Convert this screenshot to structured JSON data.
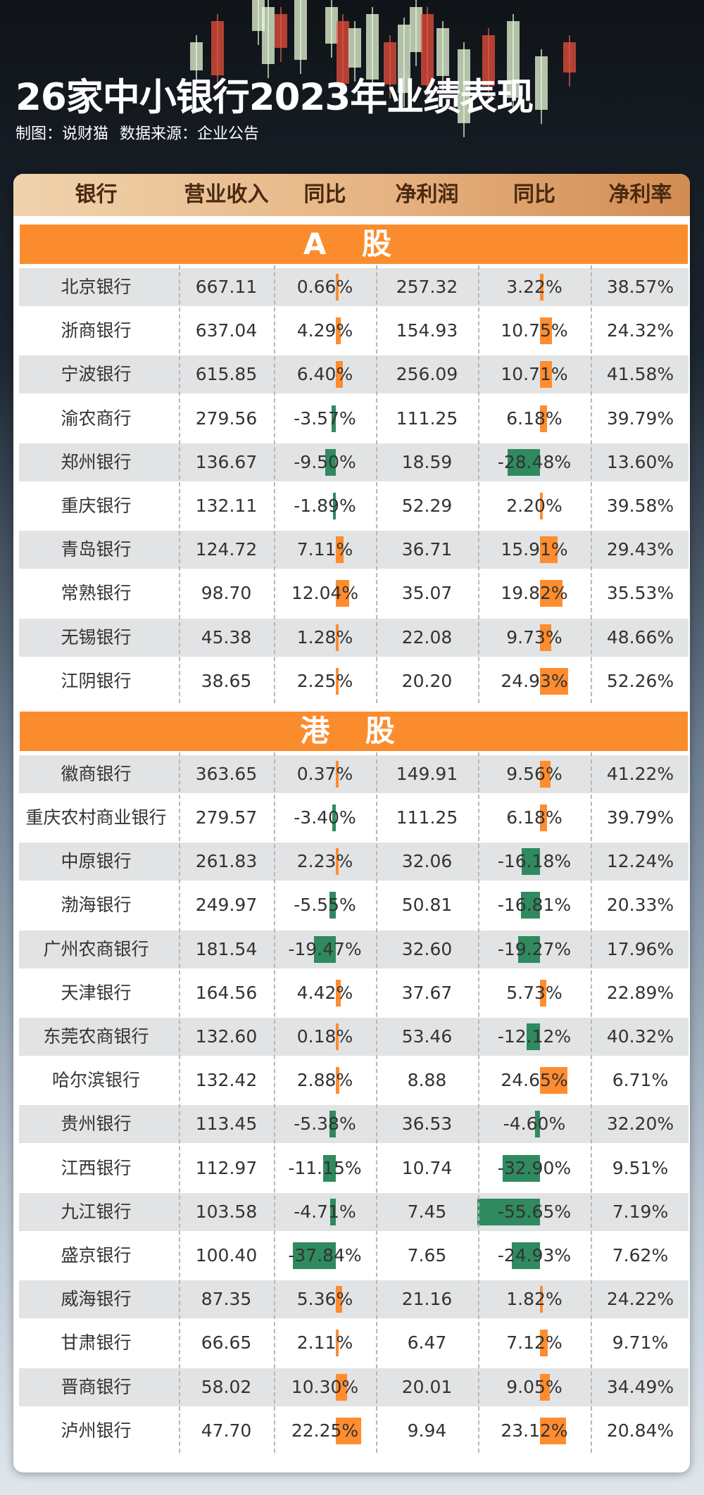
{
  "title": "26家中小银行2023年业绩表现",
  "subtitle": {
    "maker": "制图：说财猫",
    "source": "数据来源：企业公告"
  },
  "colors": {
    "accent": "#fb8c2e",
    "positive": "#ff8c2e",
    "negative": "#2f8a5f"
  },
  "chart_data": {
    "type": "table",
    "columns": [
      "银行",
      "营业收入",
      "同比",
      "净利润",
      "同比",
      "净利率"
    ],
    "sections": [
      {
        "label": "A 股",
        "rows": [
          {
            "bank": "北京银行",
            "revenue": "667.11",
            "rev_yoy": 0.66,
            "profit": "257.32",
            "profit_yoy": 3.22,
            "margin": "38.57%"
          },
          {
            "bank": "浙商银行",
            "revenue": "637.04",
            "rev_yoy": 4.29,
            "profit": "154.93",
            "profit_yoy": 10.75,
            "margin": "24.32%"
          },
          {
            "bank": "宁波银行",
            "revenue": "615.85",
            "rev_yoy": 6.4,
            "profit": "256.09",
            "profit_yoy": 10.71,
            "margin": "41.58%"
          },
          {
            "bank": "渝农商行",
            "revenue": "279.56",
            "rev_yoy": -3.57,
            "profit": "111.25",
            "profit_yoy": 6.18,
            "margin": "39.79%"
          },
          {
            "bank": "郑州银行",
            "revenue": "136.67",
            "rev_yoy": -9.5,
            "profit": "18.59",
            "profit_yoy": -28.48,
            "margin": "13.60%"
          },
          {
            "bank": "重庆银行",
            "revenue": "132.11",
            "rev_yoy": -1.89,
            "profit": "52.29",
            "profit_yoy": 2.2,
            "margin": "39.58%"
          },
          {
            "bank": "青岛银行",
            "revenue": "124.72",
            "rev_yoy": 7.11,
            "profit": "36.71",
            "profit_yoy": 15.91,
            "margin": "29.43%"
          },
          {
            "bank": "常熟银行",
            "revenue": "98.70",
            "rev_yoy": 12.04,
            "profit": "35.07",
            "profit_yoy": 19.82,
            "margin": "35.53%"
          },
          {
            "bank": "无锡银行",
            "revenue": "45.38",
            "rev_yoy": 1.28,
            "profit": "22.08",
            "profit_yoy": 9.73,
            "margin": "48.66%"
          },
          {
            "bank": "江阴银行",
            "revenue": "38.65",
            "rev_yoy": 2.25,
            "profit": "20.20",
            "profit_yoy": 24.93,
            "margin": "52.26%"
          }
        ]
      },
      {
        "label": "港 股",
        "rows": [
          {
            "bank": "徽商银行",
            "revenue": "363.65",
            "rev_yoy": 0.37,
            "profit": "149.91",
            "profit_yoy": 9.56,
            "margin": "41.22%"
          },
          {
            "bank": "重庆农村商业银行",
            "revenue": "279.57",
            "rev_yoy": -3.4,
            "profit": "111.25",
            "profit_yoy": 6.18,
            "margin": "39.79%"
          },
          {
            "bank": "中原银行",
            "revenue": "261.83",
            "rev_yoy": 2.23,
            "profit": "32.06",
            "profit_yoy": -16.18,
            "margin": "12.24%"
          },
          {
            "bank": "渤海银行",
            "revenue": "249.97",
            "rev_yoy": -5.55,
            "profit": "50.81",
            "profit_yoy": -16.81,
            "margin": "20.33%"
          },
          {
            "bank": "广州农商银行",
            "revenue": "181.54",
            "rev_yoy": -19.47,
            "profit": "32.60",
            "profit_yoy": -19.27,
            "margin": "17.96%"
          },
          {
            "bank": "天津银行",
            "revenue": "164.56",
            "rev_yoy": 4.42,
            "profit": "37.67",
            "profit_yoy": 5.73,
            "margin": "22.89%"
          },
          {
            "bank": "东莞农商银行",
            "revenue": "132.60",
            "rev_yoy": 0.18,
            "profit": "53.46",
            "profit_yoy": -12.12,
            "margin": "40.32%"
          },
          {
            "bank": "哈尔滨银行",
            "revenue": "132.42",
            "rev_yoy": 2.88,
            "profit": "8.88",
            "profit_yoy": 24.65,
            "margin": "6.71%"
          },
          {
            "bank": "贵州银行",
            "revenue": "113.45",
            "rev_yoy": -5.38,
            "profit": "36.53",
            "profit_yoy": -4.6,
            "margin": "32.20%"
          },
          {
            "bank": "江西银行",
            "revenue": "112.97",
            "rev_yoy": -11.15,
            "profit": "10.74",
            "profit_yoy": -32.9,
            "margin": "9.51%"
          },
          {
            "bank": "九江银行",
            "revenue": "103.58",
            "rev_yoy": -4.71,
            "profit": "7.45",
            "profit_yoy": -55.65,
            "margin": "7.19%"
          },
          {
            "bank": "盛京银行",
            "revenue": "100.40",
            "rev_yoy": -37.84,
            "profit": "7.65",
            "profit_yoy": -24.93,
            "margin": "7.62%"
          },
          {
            "bank": "威海银行",
            "revenue": "87.35",
            "rev_yoy": 5.36,
            "profit": "21.16",
            "profit_yoy": 1.82,
            "margin": "24.22%"
          },
          {
            "bank": "甘肃银行",
            "revenue": "66.65",
            "rev_yoy": 2.11,
            "profit": "6.47",
            "profit_yoy": 7.12,
            "margin": "9.71%"
          },
          {
            "bank": "晋商银行",
            "revenue": "58.02",
            "rev_yoy": 10.3,
            "profit": "20.01",
            "profit_yoy": 9.05,
            "margin": "34.49%"
          },
          {
            "bank": "泸州银行",
            "revenue": "47.70",
            "rev_yoy": 22.25,
            "profit": "9.94",
            "profit_yoy": 23.12,
            "margin": "20.84%"
          }
        ]
      }
    ]
  }
}
